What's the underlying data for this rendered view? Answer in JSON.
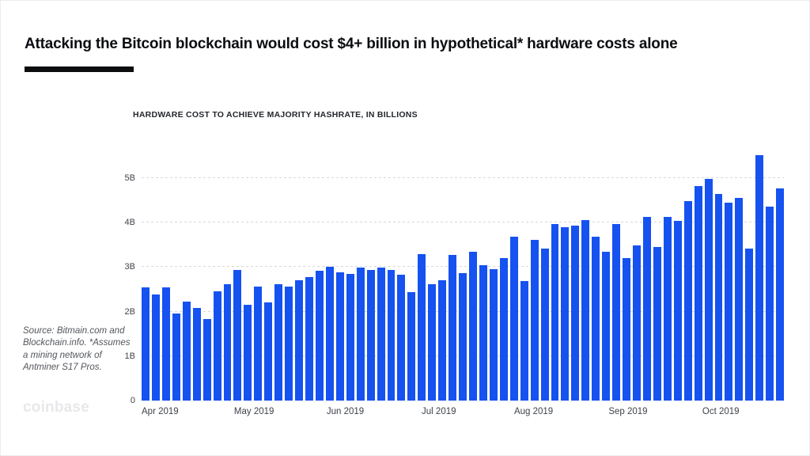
{
  "page": {
    "title": "Attacking the Bitcoin blockchain would cost $4+ billion in hypothetical* hardware costs alone",
    "source_note": "Source: Bitmain.com and Blockchain.info. *Assumes a mining network of Antminer S17 Pros.",
    "brand": "coinbase"
  },
  "colors": {
    "bar_blue": "#1652f0",
    "title_text": "#0b0d11",
    "gridline": "#d7d8da",
    "axis_label": "#3f434a",
    "brand_wordmark": "#e7e8ea"
  },
  "chart_data": {
    "type": "bar",
    "title": "HARDWARE COST TO ACHIEVE MAJORITY HASHRATE, IN BILLIONS",
    "xlabel": "",
    "ylabel": "",
    "ylim": [
      0,
      5.55
    ],
    "grid": true,
    "legend": false,
    "bar_color": "#1652f0",
    "y_ticks": [
      {
        "label": "5B",
        "value": 5
      },
      {
        "label": "4B",
        "value": 4
      },
      {
        "label": "3B",
        "value": 3
      },
      {
        "label": "2B",
        "value": 2
      },
      {
        "label": "1B",
        "value": 1
      },
      {
        "label": "0",
        "value": 0
      }
    ],
    "x_ticks": [
      {
        "label": "Apr 2019",
        "pos_pct": 0
      },
      {
        "label": "May 2019",
        "pos_pct": 14.4
      },
      {
        "label": "Jun 2019",
        "pos_pct": 28.8
      },
      {
        "label": "Jul 2019",
        "pos_pct": 43.6
      },
      {
        "label": "Aug 2019",
        "pos_pct": 58.0
      },
      {
        "label": "Sep 2019",
        "pos_pct": 72.7
      },
      {
        "label": "Oct 2019",
        "pos_pct": 87.3
      }
    ],
    "values": [
      2.54,
      2.39,
      2.54,
      1.96,
      2.23,
      2.09,
      1.84,
      2.45,
      2.62,
      2.93,
      2.16,
      2.57,
      2.2,
      2.61,
      2.56,
      2.71,
      2.77,
      2.91,
      3.0,
      2.89,
      2.84,
      2.98,
      2.93,
      2.98,
      2.93,
      2.82,
      2.43,
      3.3,
      2.62,
      2.71,
      3.27,
      2.86,
      3.34,
      3.05,
      2.95,
      3.2,
      3.69,
      2.68,
      3.62,
      3.41,
      3.96,
      3.89,
      3.94,
      4.05,
      3.69,
      3.34,
      3.96,
      3.21,
      3.48,
      4.12,
      3.46,
      4.12,
      4.04,
      4.48,
      4.82,
      4.98,
      4.64,
      4.45,
      4.55,
      3.41,
      5.52,
      4.36,
      4.77
    ]
  }
}
